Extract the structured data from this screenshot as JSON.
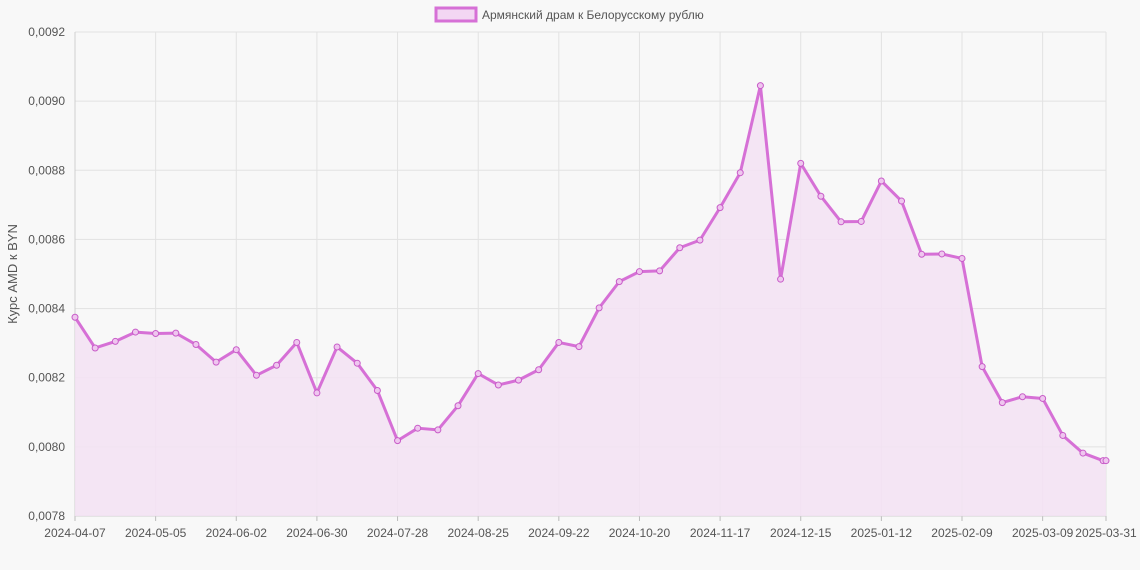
{
  "chart_data": {
    "type": "line",
    "ylabel": "Курс AMD к BYN",
    "xlabel": "",
    "ylim": [
      0.0078,
      0.0092
    ],
    "yticks": [
      "0,0078",
      "0,0080",
      "0,0082",
      "0,0084",
      "0,0086",
      "0,0088",
      "0,0090",
      "0,0092"
    ],
    "xticks": [
      "2024-04-07",
      "2024-05-05",
      "2024-06-02",
      "2024-06-30",
      "2024-07-28",
      "2024-08-25",
      "2024-09-22",
      "2024-10-20",
      "2024-11-17",
      "2024-12-15",
      "2025-01-12",
      "2025-02-09",
      "2025-03-09",
      "2025-03-31"
    ],
    "grid": true,
    "legend": "top-center",
    "colors": {
      "line": "#d670d6",
      "fill": "#f3e2f3",
      "grid": "#e2e2e2"
    },
    "series": [
      {
        "name": "Армянский драм к Белорусскому рублю",
        "x": [
          "2024-04-07",
          "2024-04-14",
          "2024-04-21",
          "2024-04-28",
          "2024-05-05",
          "2024-05-12",
          "2024-05-19",
          "2024-05-26",
          "2024-06-02",
          "2024-06-09",
          "2024-06-16",
          "2024-06-23",
          "2024-06-30",
          "2024-07-07",
          "2024-07-14",
          "2024-07-21",
          "2024-07-28",
          "2024-08-04",
          "2024-08-11",
          "2024-08-18",
          "2024-08-25",
          "2024-09-01",
          "2024-09-08",
          "2024-09-15",
          "2024-09-22",
          "2024-09-29",
          "2024-10-06",
          "2024-10-13",
          "2024-10-20",
          "2024-10-27",
          "2024-11-03",
          "2024-11-10",
          "2024-11-17",
          "2024-11-24",
          "2024-12-01",
          "2024-12-08",
          "2024-12-15",
          "2024-12-22",
          "2024-12-29",
          "2025-01-05",
          "2025-01-12",
          "2025-01-19",
          "2025-01-26",
          "2025-02-02",
          "2025-02-09",
          "2025-02-16",
          "2025-02-23",
          "2025-03-02",
          "2025-03-09",
          "2025-03-16",
          "2025-03-23",
          "2025-03-30",
          "2025-03-31"
        ],
        "values": [
          0.008375,
          0.008286,
          0.008305,
          0.008332,
          0.008328,
          0.008329,
          0.008296,
          0.008245,
          0.008281,
          0.008207,
          0.008236,
          0.008302,
          0.008156,
          0.008289,
          0.008242,
          0.008163,
          0.008018,
          0.008054,
          0.008049,
          0.008119,
          0.008212,
          0.008179,
          0.008193,
          0.008223,
          0.008302,
          0.00829,
          0.008402,
          0.008478,
          0.008507,
          0.008509,
          0.008576,
          0.008598,
          0.008692,
          0.008793,
          0.009045,
          0.008485,
          0.00882,
          0.008725,
          0.008651,
          0.008652,
          0.008769,
          0.008711,
          0.008557,
          0.008558,
          0.008545,
          0.008232,
          0.008128,
          0.008145,
          0.00814,
          0.008033,
          0.007982,
          0.00796,
          0.00796
        ]
      }
    ]
  }
}
